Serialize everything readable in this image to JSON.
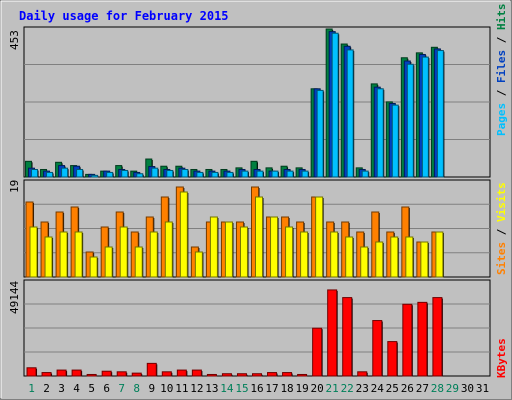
{
  "chart_data": {
    "type": "bar",
    "title": "Daily usage for February 2015",
    "days": [
      "1",
      "2",
      "3",
      "4",
      "5",
      "6",
      "7",
      "8",
      "9",
      "10",
      "11",
      "12",
      "13",
      "14",
      "15",
      "16",
      "17",
      "18",
      "19",
      "20",
      "21",
      "22",
      "23",
      "24",
      "25",
      "26",
      "27",
      "28",
      "29",
      "30",
      "31"
    ],
    "weekend_days": [
      "1",
      "7",
      "8",
      "14",
      "15",
      "21",
      "22",
      "28",
      "29"
    ],
    "grid": true,
    "panels": [
      {
        "id": "hits",
        "max_label": "453",
        "ylim": [
          0,
          453
        ],
        "series": [
          {
            "name": "Hits",
            "color": "#008040",
            "values": [
              48,
              23,
              45,
              35,
              8,
              18,
              35,
              18,
              55,
              33,
              33,
              23,
              23,
              23,
              28,
              48,
              28,
              33,
              28,
              270,
              453,
              407,
              28,
              285,
              230,
              365,
              380,
              397,
              0,
              0,
              0
            ]
          },
          {
            "name": "Files",
            "color": "#0040C0",
            "values": [
              27,
              18,
              35,
              33,
              8,
              18,
              23,
              14,
              32,
              23,
              27,
              18,
              18,
              18,
              23,
              23,
              18,
              23,
              23,
              270,
              445,
              400,
              23,
              275,
              225,
              355,
              375,
              392,
              0,
              0,
              0
            ]
          },
          {
            "name": "Pages",
            "color": "#00C0FF",
            "values": [
              23,
              14,
              27,
              23,
              5,
              14,
              20,
              10,
              27,
              20,
              23,
              14,
              14,
              14,
              18,
              18,
              18,
              18,
              18,
              265,
              440,
              389,
              18,
              270,
              220,
              345,
              367,
              387,
              0,
              0,
              0
            ]
          }
        ]
      },
      {
        "id": "visits",
        "max_label": "19",
        "ylim": [
          0,
          19
        ],
        "series": [
          {
            "name": "Visits",
            "color": "#FF8000",
            "values": [
              15,
              11,
              13,
              14,
              5,
              10,
              13,
              9,
              12,
              16,
              18,
              6,
              11,
              11,
              11,
              18,
              12,
              12,
              11,
              16,
              11,
              11,
              9,
              13,
              9,
              14,
              7,
              9,
              0,
              0,
              0
            ]
          },
          {
            "name": "Sites",
            "color": "#FFFF00",
            "values": [
              10,
              8,
              9,
              9,
              4,
              6,
              10,
              6,
              9,
              11,
              17,
              5,
              12,
              11,
              10,
              16,
              12,
              10,
              9,
              16,
              9,
              8,
              6,
              7,
              8,
              8,
              7,
              9,
              0,
              0,
              0
            ]
          }
        ]
      },
      {
        "id": "kbytes",
        "max_label": "49144",
        "ylim": [
          0,
          49144
        ],
        "series": [
          {
            "name": "KBytes",
            "color": "#FF0000",
            "values": [
              4300,
              1800,
              3100,
              3100,
              800,
              2500,
              2200,
              1500,
              6600,
              2200,
              3100,
              3100,
              800,
              1200,
              1200,
              1200,
              1800,
              1800,
              800,
              25000,
              45000,
              41000,
              2200,
              29000,
              18000,
              37500,
              38500,
              41000,
              0,
              0,
              0
            ]
          }
        ]
      }
    ]
  }
}
